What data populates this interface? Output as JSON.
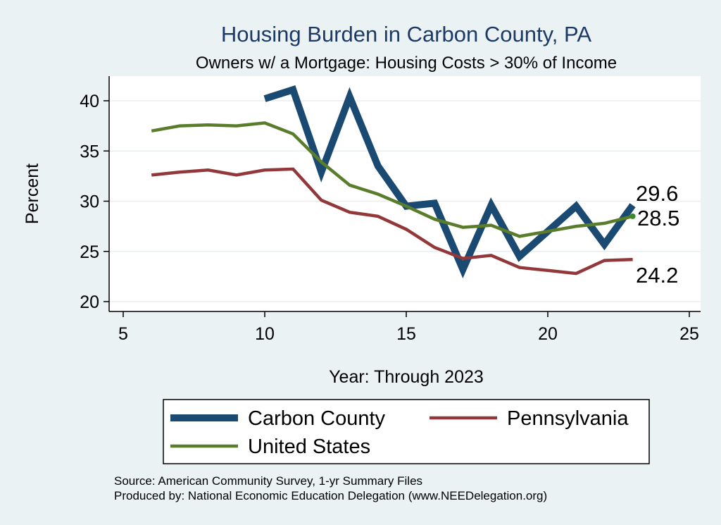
{
  "chart_data": {
    "type": "line",
    "title": "Housing Burden in Carbon County, PA",
    "subtitle": "Owners w/ a Mortgage: Housing Costs > 30% of Income",
    "xlabel": "Year: Through 2023",
    "ylabel": "Percent",
    "xlim": [
      5,
      25
    ],
    "ylim": [
      20,
      42
    ],
    "x_ticks": [
      "5",
      "10",
      "15",
      "20",
      "25"
    ],
    "y_ticks": [
      "20",
      "25",
      "30",
      "35",
      "40"
    ],
    "grid": true,
    "series": [
      {
        "name": "Carbon County",
        "color": "#1a4a72",
        "x": [
          10,
          11,
          12,
          13,
          14,
          15,
          16,
          17,
          18,
          19,
          20,
          21,
          22,
          23
        ],
        "values": [
          40.2,
          41.1,
          32.9,
          40.4,
          33.5,
          29.5,
          29.8,
          23.2,
          29.6,
          24.5,
          27.0,
          29.5,
          25.7,
          29.6
        ]
      },
      {
        "name": "Pennsylvania",
        "color": "#93383a",
        "x": [
          6,
          7,
          8,
          9,
          10,
          11,
          12,
          13,
          14,
          15,
          16,
          17,
          18,
          19,
          20,
          21,
          22,
          23
        ],
        "values": [
          32.6,
          32.9,
          33.1,
          32.6,
          33.1,
          33.2,
          30.1,
          28.9,
          28.5,
          27.2,
          25.4,
          24.3,
          24.6,
          23.4,
          23.1,
          22.8,
          24.1,
          24.2
        ]
      },
      {
        "name": "United States",
        "color": "#5a7d2b",
        "x": [
          6,
          7,
          8,
          9,
          10,
          11,
          12,
          13,
          14,
          15,
          16,
          17,
          18,
          19,
          20,
          21,
          22,
          23
        ],
        "values": [
          37.0,
          37.5,
          37.6,
          37.5,
          37.8,
          36.7,
          33.9,
          31.6,
          30.7,
          29.5,
          28.2,
          27.4,
          27.6,
          26.5,
          27.0,
          27.5,
          27.8,
          28.5
        ]
      }
    ],
    "end_labels": [
      {
        "series": "Carbon County",
        "text": "29.6"
      },
      {
        "series": "United States",
        "text": "28.5"
      },
      {
        "series": "Pennsylvania",
        "text": "24.2"
      }
    ],
    "legend_position": "bottom"
  },
  "footer": {
    "source": "Source: American Community Survey, 1-yr Summary Files",
    "produced_by": "Produced by: National Economic Education Delegation (www.NEEDelegation.org)"
  }
}
